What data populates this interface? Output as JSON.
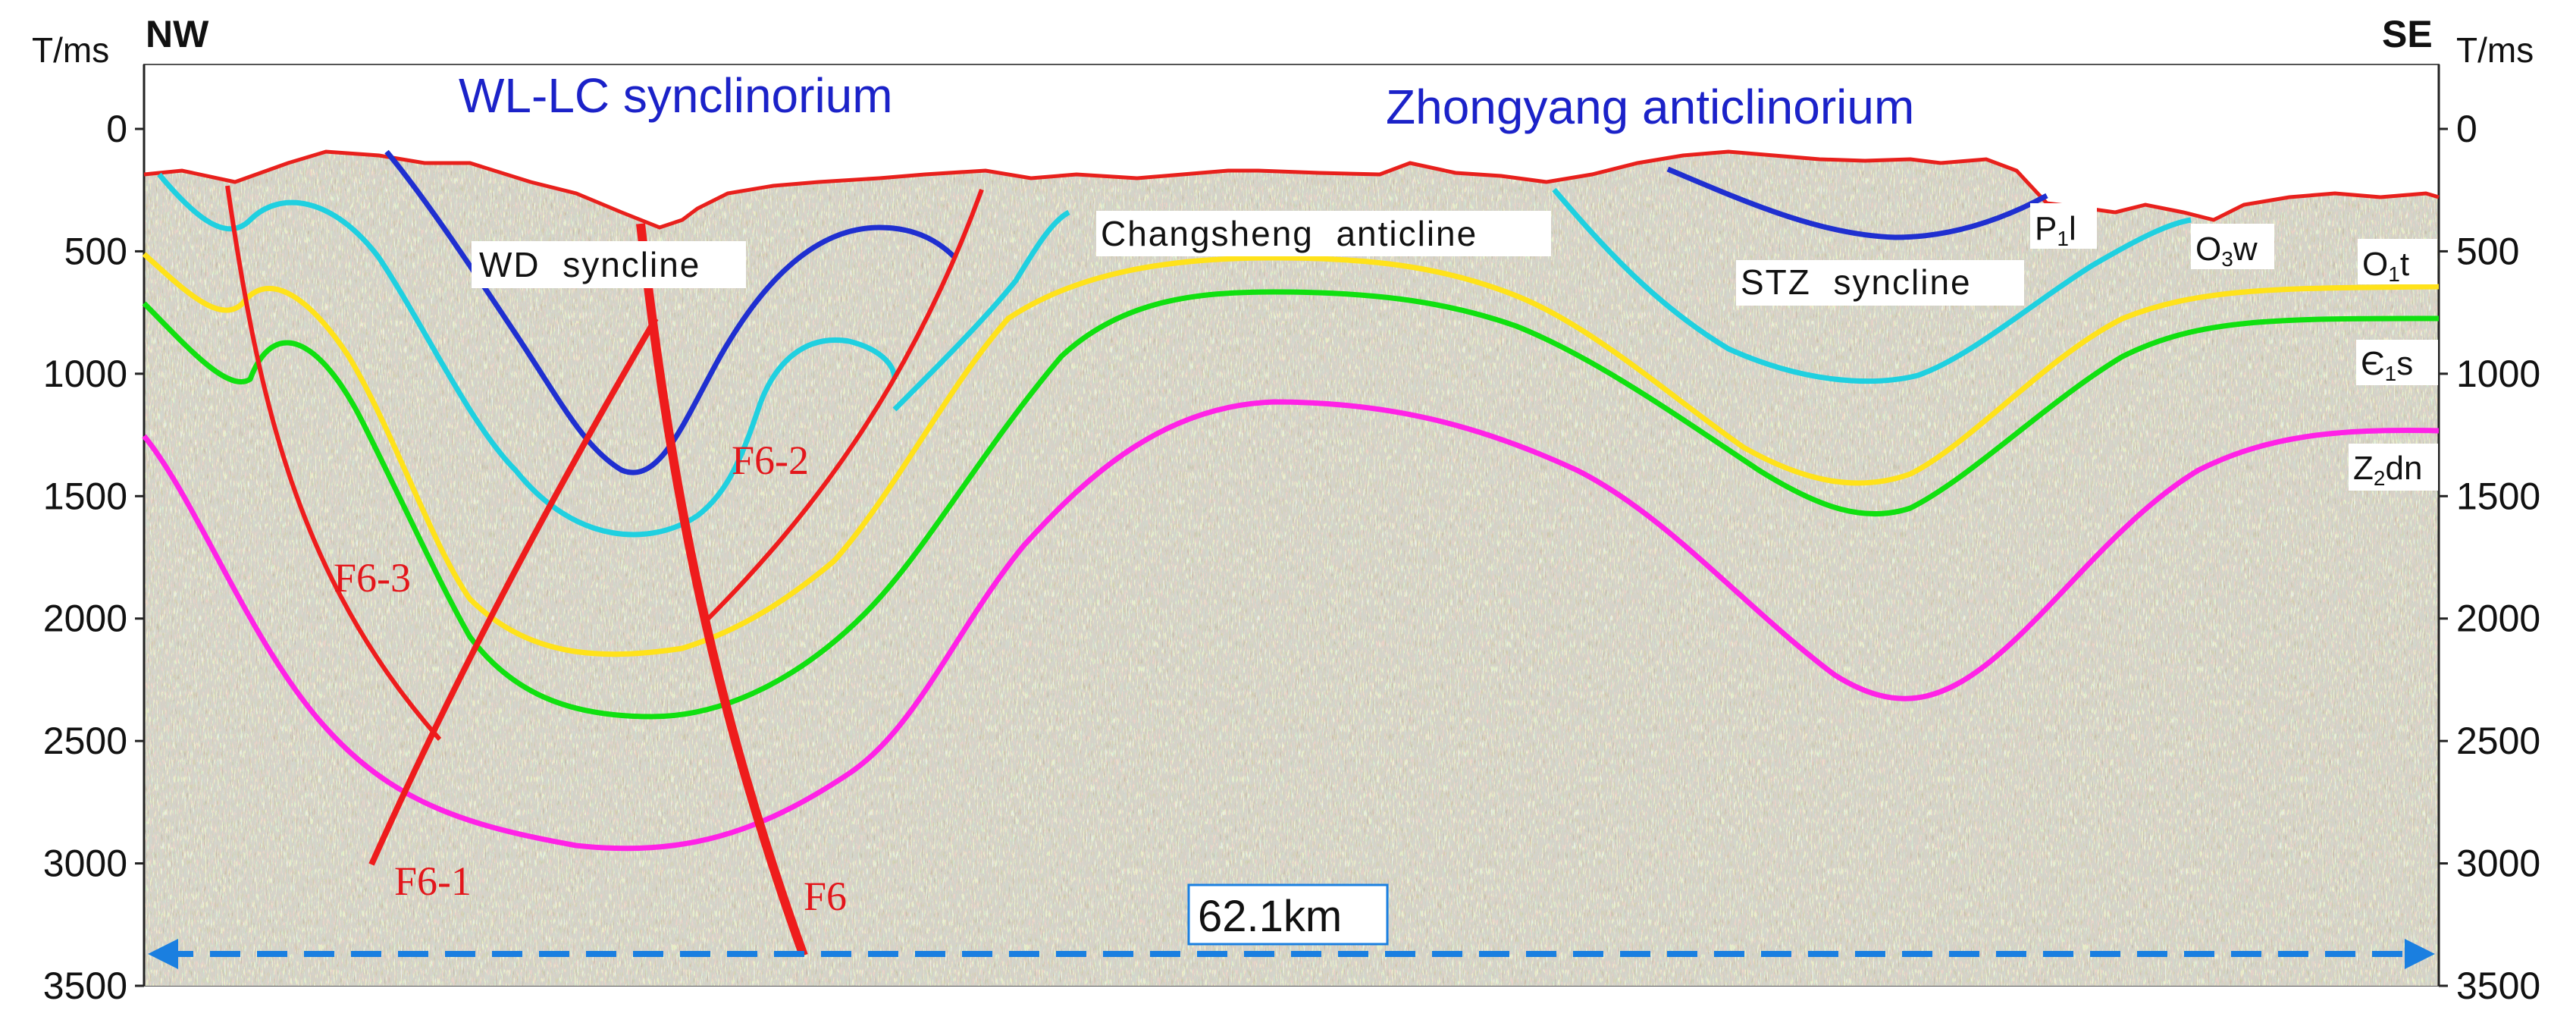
{
  "axis": {
    "left_unit": "T/ms",
    "right_unit": "T/ms",
    "left_direction": "NW",
    "right_direction": "SE",
    "ticks": [
      "0",
      "500",
      "1000",
      "1500",
      "2000",
      "2500",
      "3000",
      "3500"
    ]
  },
  "titles": {
    "left_region": "WL-LC synclinorium",
    "right_region": "Zhongyang anticlinorium"
  },
  "structures": {
    "wd_syncline": "WD  syncline",
    "changsheng_anticline": "Changsheng  anticline",
    "stz_syncline": "STZ  syncline"
  },
  "formations": {
    "p1l": {
      "main": "P",
      "sub": "1",
      "tail": "l"
    },
    "o3w": {
      "main": "O",
      "sub": "3",
      "tail": "w"
    },
    "o1t": {
      "main": "O",
      "sub": "1",
      "tail": "t"
    },
    "e1s": {
      "main": "Є",
      "sub": "1",
      "tail": "s"
    },
    "z2dn": {
      "main": "Z",
      "sub": "2",
      "tail": "dn"
    }
  },
  "faults": {
    "f6": "F6",
    "f6_1": "F6-1",
    "f6_2": "F6-2",
    "f6_3": "F6-3"
  },
  "scale_bar": {
    "label": "62.1km"
  },
  "colors": {
    "surface": "#e8201c",
    "p1l_horizon": "#1f2fd0",
    "o3w_horizon": "#1fd0e0",
    "o1t_horizon": "#ffe21a",
    "e1s_horizon": "#10e010",
    "z2dn_horizon": "#ff22e6",
    "fault": "#ee1c1c",
    "scale_bar": "#1a7fe0",
    "region_title": "#1b22c8",
    "seismic_bg": "#9a8a78"
  }
}
